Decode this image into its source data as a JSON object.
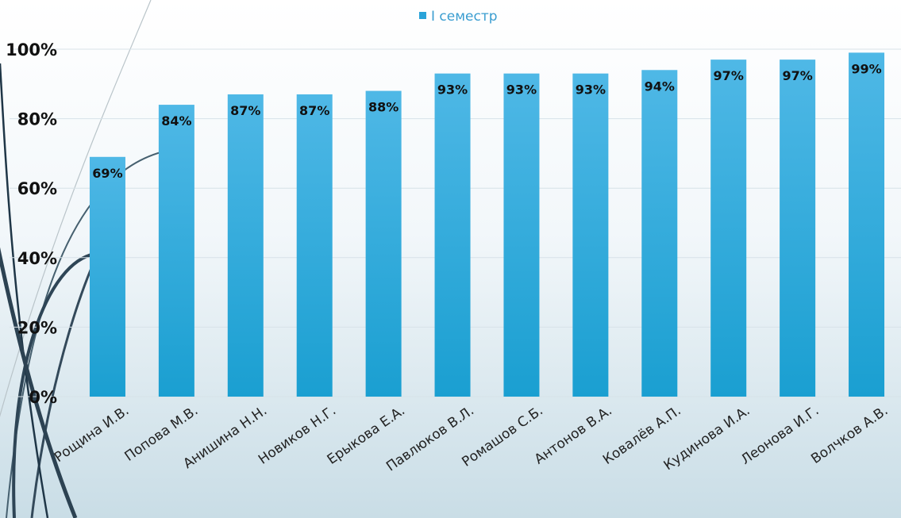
{
  "chart_data": {
    "type": "bar",
    "categories": [
      "Рощина И.В.",
      "Попова М.В.",
      "Анишина Н.Н.",
      "Новиков Н.Г.",
      "Ерыкова Е.А.",
      "Павлюков В.Л.",
      "Ромашов С.Б.",
      "Антонов В.А.",
      "Ковалёв А.П.",
      "Кудинова И.А.",
      "Леонова И.Г.",
      "Волчков А.В."
    ],
    "series": [
      {
        "name": "I семестр",
        "values": [
          69,
          84,
          87,
          87,
          88,
          93,
          93,
          93,
          94,
          97,
          97,
          99
        ],
        "labels": [
          "69%",
          "84%",
          "87%",
          "87%",
          "88%",
          "93%",
          "93%",
          "93%",
          "94%",
          "97%",
          "97%",
          "99%"
        ]
      }
    ],
    "yticks": [
      "0%",
      "20%",
      "40%",
      "60%",
      "80%",
      "100%"
    ],
    "ylim": [
      0,
      100
    ],
    "grid": true,
    "legend_position": "top-center",
    "colors": {
      "bar_top": "#4fb8e6",
      "bar_bottom": "#1a9fd1",
      "legend_marker": "#2aa3d9"
    }
  }
}
